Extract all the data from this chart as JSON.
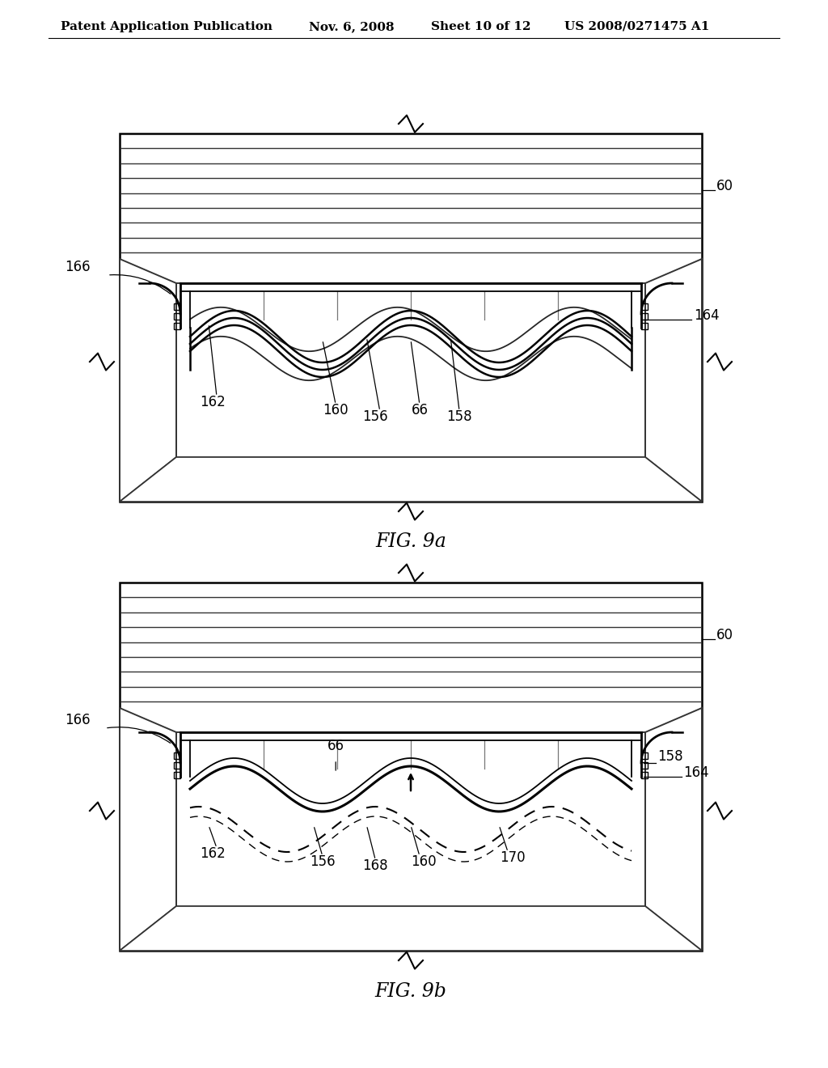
{
  "bg_color": "#ffffff",
  "line_color": "#000000",
  "header_text": "Patent Application Publication",
  "header_date": "Nov. 6, 2008",
  "header_sheet": "Sheet 10 of 12",
  "header_patent": "US 2008/0271475 A1",
  "fig_a_caption": "FIG. 9a",
  "fig_b_caption": "FIG. 9b",
  "label_fontsize": 12,
  "caption_fontsize": 17,
  "header_fontsize": 11
}
